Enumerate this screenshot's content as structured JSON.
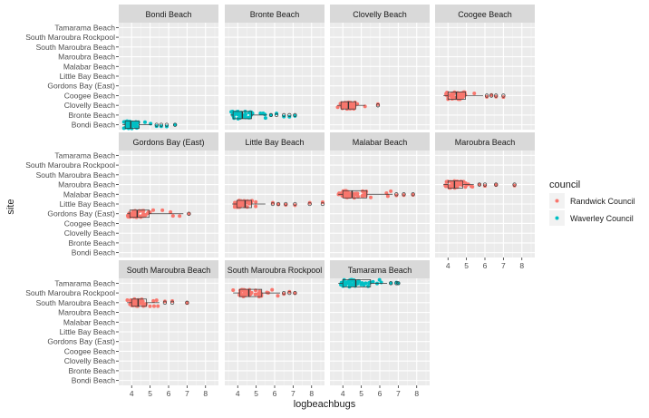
{
  "chart_data": {
    "type": "faceted-boxplot-jitter",
    "xlabel": "logbeachbugs",
    "ylabel": "site",
    "xlim": [
      3.3,
      8.7
    ],
    "x_ticks": [
      4,
      5,
      6,
      7,
      8
    ],
    "y_categories": [
      "Bondi Beach",
      "Bronte Beach",
      "Clovelly Beach",
      "Coogee Beach",
      "Gordons Bay (East)",
      "Little Bay Beach",
      "Malabar Beach",
      "Maroubra Beach",
      "South Maroubra Beach",
      "South Maroubra Rockpool",
      "Tamarama Beach"
    ],
    "legend": {
      "title": "council",
      "placement": "right",
      "entries": [
        {
          "name": "Randwick Council",
          "color": "#F8766D"
        },
        {
          "name": "Waverley Council",
          "color": "#00BFC4"
        }
      ]
    },
    "panels": [
      {
        "site": "Bondi Beach",
        "council": "Waverley Council",
        "box": {
          "min": 3.5,
          "q1": 3.65,
          "median": 3.95,
          "q3": 4.4,
          "max": 5.1
        },
        "outliers": [
          5.35,
          5.6,
          5.9,
          6.35
        ]
      },
      {
        "site": "Bronte Beach",
        "council": "Waverley Council",
        "box": {
          "min": 3.6,
          "q1": 3.75,
          "median": 4.25,
          "q3": 4.75,
          "max": 5.6
        },
        "outliers": [
          5.8,
          6.1,
          6.5,
          6.8,
          7.1
        ]
      },
      {
        "site": "Clovelly Beach",
        "council": "Randwick Council",
        "box": {
          "min": 3.7,
          "q1": 3.9,
          "median": 4.3,
          "q3": 4.7,
          "max": 5.2
        },
        "outliers": [
          5.9
        ]
      },
      {
        "site": "Coogee Beach",
        "council": "Randwick Council",
        "box": {
          "min": 3.75,
          "q1": 4.0,
          "median": 4.45,
          "q3": 4.95,
          "max": 5.9
        },
        "outliers": [
          6.1,
          6.35,
          6.6,
          7.0
        ]
      },
      {
        "site": "Gordons Bay (East)",
        "council": "Randwick Council",
        "box": {
          "min": 3.75,
          "q1": 3.9,
          "median": 4.3,
          "q3": 4.95,
          "max": 6.8
        },
        "outliers": [
          7.1
        ]
      },
      {
        "site": "Little Bay Beach",
        "council": "Randwick Council",
        "box": {
          "min": 3.7,
          "q1": 3.95,
          "median": 4.4,
          "q3": 4.75,
          "max": 5.5
        },
        "outliers": [
          5.9,
          6.2,
          6.6,
          7.1,
          7.9,
          8.6
        ]
      },
      {
        "site": "Malabar Beach",
        "council": "Randwick Council",
        "box": {
          "min": 3.75,
          "q1": 4.0,
          "median": 4.5,
          "q3": 5.3,
          "max": 6.7
        },
        "outliers": [
          6.9,
          7.3,
          7.8
        ]
      },
      {
        "site": "Maroubra Beach",
        "council": "Randwick Council",
        "box": {
          "min": 3.75,
          "q1": 4.0,
          "median": 4.35,
          "q3": 4.8,
          "max": 5.4
        },
        "outliers": [
          5.7,
          6.0,
          6.6,
          7.6
        ]
      },
      {
        "site": "South Maroubra Beach",
        "council": "Randwick Council",
        "box": {
          "min": 3.75,
          "q1": 4.0,
          "median": 4.35,
          "q3": 4.8,
          "max": 5.5
        },
        "outliers": [
          5.8,
          6.2,
          7.0
        ]
      },
      {
        "site": "South Maroubra Rockpool",
        "council": "Randwick Council",
        "box": {
          "min": 3.75,
          "q1": 4.1,
          "median": 4.6,
          "q3": 5.3,
          "max": 6.3
        },
        "outliers": [
          6.5,
          6.8,
          7.1
        ]
      },
      {
        "site": "Tamarama Beach",
        "council": "Waverley Council",
        "box": {
          "min": 3.75,
          "q1": 4.0,
          "median": 4.7,
          "q3": 5.5,
          "max": 6.4
        },
        "outliers": [
          6.6,
          6.9,
          7.0
        ]
      }
    ]
  }
}
